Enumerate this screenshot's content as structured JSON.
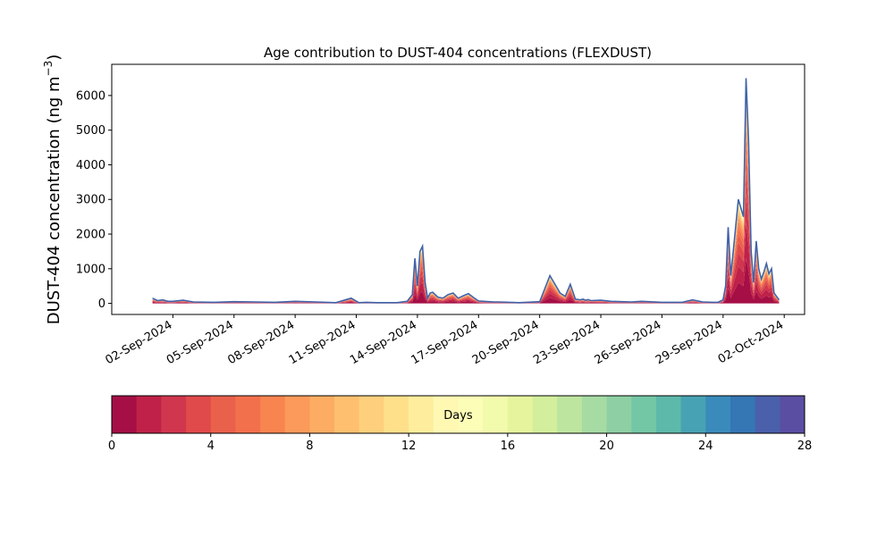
{
  "chart_data": {
    "type": "area",
    "stacked": true,
    "title": "Age contribution to DUST-404 concentrations (FLEXDUST)",
    "ylabel_main": "DUST-404 concentration (ng m",
    "ylabel_sup": "−3",
    "ylabel_close": ")",
    "xlabel": "",
    "ylim": [
      -320,
      6900
    ],
    "xlim": [
      "2024-08-30",
      "2024-10-03"
    ],
    "grid": false,
    "y_ticks": [
      0,
      1000,
      2000,
      3000,
      4000,
      5000,
      6000
    ],
    "x_ticks": [
      {
        "date": "2024-09-02",
        "label": "02-Sep-2024"
      },
      {
        "date": "2024-09-05",
        "label": "05-Sep-2024"
      },
      {
        "date": "2024-09-08",
        "label": "08-Sep-2024"
      },
      {
        "date": "2024-09-11",
        "label": "11-Sep-2024"
      },
      {
        "date": "2024-09-14",
        "label": "14-Sep-2024"
      },
      {
        "date": "2024-09-17",
        "label": "17-Sep-2024"
      },
      {
        "date": "2024-09-20",
        "label": "20-Sep-2024"
      },
      {
        "date": "2024-09-23",
        "label": "23-Sep-2024"
      },
      {
        "date": "2024-09-26",
        "label": "26-Sep-2024"
      },
      {
        "date": "2024-09-29",
        "label": "29-Sep-2024"
      },
      {
        "date": "2024-10-02",
        "label": "02-Oct-2024"
      }
    ],
    "total_series": {
      "x": [
        "2024-09-01 00:00",
        "2024-09-01 06:00",
        "2024-09-01 12:00",
        "2024-09-01 18:00",
        "2024-09-02 00:00",
        "2024-09-02 12:00",
        "2024-09-03 00:00",
        "2024-09-04 00:00",
        "2024-09-05 00:00",
        "2024-09-06 00:00",
        "2024-09-07 00:00",
        "2024-09-08 00:00",
        "2024-09-09 00:00",
        "2024-09-10 00:00",
        "2024-09-10 18:00",
        "2024-09-11 03:00",
        "2024-09-11 12:00",
        "2024-09-12 00:00",
        "2024-09-13 00:00",
        "2024-09-13 12:00",
        "2024-09-13 18:00",
        "2024-09-13 21:00",
        "2024-09-14 00:00",
        "2024-09-14 03:00",
        "2024-09-14 06:00",
        "2024-09-14 09:00",
        "2024-09-14 12:00",
        "2024-09-14 15:00",
        "2024-09-14 18:00",
        "2024-09-15 00:00",
        "2024-09-15 06:00",
        "2024-09-15 12:00",
        "2024-09-15 18:00",
        "2024-09-16 00:00",
        "2024-09-16 06:00",
        "2024-09-16 12:00",
        "2024-09-16 18:00",
        "2024-09-17 00:00",
        "2024-09-17 06:00",
        "2024-09-17 12:00",
        "2024-09-17 18:00",
        "2024-09-18 00:00",
        "2024-09-19 00:00",
        "2024-09-20 00:00",
        "2024-09-20 12:00",
        "2024-09-20 18:00",
        "2024-09-21 00:00",
        "2024-09-21 06:00",
        "2024-09-21 12:00",
        "2024-09-21 18:00",
        "2024-09-22 00:00",
        "2024-09-22 03:00",
        "2024-09-22 06:00",
        "2024-09-22 09:00",
        "2024-09-22 12:00",
        "2024-09-23 00:00",
        "2024-09-23 12:00",
        "2024-09-24 00:00",
        "2024-09-24 12:00",
        "2024-09-25 00:00",
        "2024-09-26 00:00",
        "2024-09-27 00:00",
        "2024-09-27 12:00",
        "2024-09-28 00:00",
        "2024-09-28 12:00",
        "2024-09-28 18:00",
        "2024-09-29 00:00",
        "2024-09-29 03:00",
        "2024-09-29 06:00",
        "2024-09-29 09:00",
        "2024-09-29 12:00",
        "2024-09-29 18:00",
        "2024-09-30 00:00",
        "2024-09-30 03:00",
        "2024-09-30 06:00",
        "2024-09-30 09:00",
        "2024-09-30 12:00",
        "2024-09-30 15:00",
        "2024-09-30 18:00",
        "2024-09-30 21:00",
        "2024-10-01 00:00",
        "2024-10-01 03:00",
        "2024-10-01 06:00",
        "2024-10-01 09:00",
        "2024-10-01 12:00",
        "2024-10-01 18:00"
      ],
      "y": [
        150,
        80,
        100,
        60,
        60,
        90,
        40,
        30,
        50,
        40,
        30,
        60,
        40,
        20,
        150,
        20,
        30,
        20,
        20,
        60,
        250,
        1300,
        500,
        1500,
        1650,
        600,
        150,
        300,
        320,
        180,
        150,
        250,
        300,
        150,
        220,
        280,
        170,
        70,
        60,
        50,
        40,
        40,
        20,
        50,
        800,
        550,
        300,
        200,
        550,
        120,
        100,
        120,
        90,
        110,
        80,
        90,
        60,
        50,
        40,
        60,
        30,
        30,
        100,
        40,
        30,
        30,
        100,
        500,
        2200,
        800,
        1500,
        3000,
        2500,
        6500,
        4700,
        1500,
        600,
        1800,
        1000,
        700,
        900,
        1150,
        850,
        1000,
        300,
        100
      ]
    },
    "age_bins": [
      0,
      1,
      2,
      3,
      4,
      5,
      6,
      7,
      8,
      9,
      10,
      11,
      12,
      13,
      14,
      15,
      16,
      17,
      18,
      19,
      20,
      21,
      22,
      23,
      24,
      25,
      26,
      27,
      28,
      29,
      30
    ],
    "colorbar_ticks": [
      0,
      4,
      8,
      12,
      16,
      20,
      24,
      28
    ],
    "colorbar_label": "Days",
    "colorbar_colors": [
      "#a50f45",
      "#bf2148",
      "#d0364d",
      "#e04a4a",
      "#e9604b",
      "#f3704c",
      "#f88450",
      "#fb9a5a",
      "#fdad63",
      "#fec06f",
      "#fed07e",
      "#fee08b",
      "#feed9d",
      "#fff8b3",
      "#fcfdb6",
      "#f2faac",
      "#e6f59d",
      "#d3ee9c",
      "#bee5a0",
      "#a6dba4",
      "#8ed0a4",
      "#74c7a5",
      "#5db9a9",
      "#47a2b3",
      "#3a8bbc",
      "#3576b5",
      "#4a60ab",
      "#5a4ea3"
    ]
  }
}
